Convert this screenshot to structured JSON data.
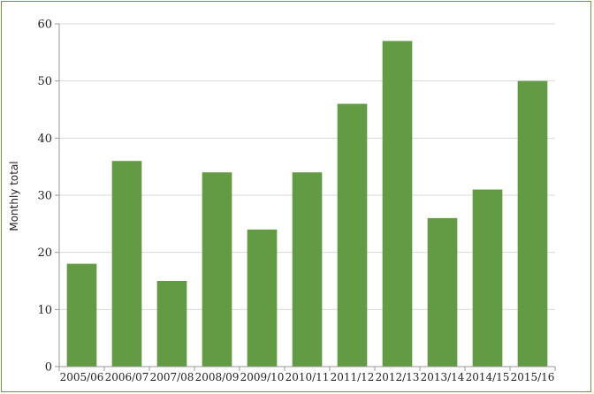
{
  "chart_data": {
    "type": "bar",
    "title": "",
    "xlabel": "",
    "ylabel": "Monthly total",
    "categories": [
      "2005/06",
      "2006/07",
      "2007/08",
      "2008/09",
      "2009/10",
      "2010/11",
      "2011/12",
      "2012/13",
      "2013/14",
      "2014/15",
      "2015/16"
    ],
    "values": [
      18,
      36,
      15,
      34,
      24,
      34,
      46,
      57,
      26,
      31,
      50
    ],
    "ylim": [
      0,
      60
    ],
    "yticks": [
      0,
      10,
      20,
      30,
      40,
      50,
      60
    ],
    "grid": true,
    "legend": "none",
    "colors": {
      "bar": "#629b44",
      "grid": "#d9d9d9",
      "axis": "#9a9a9a",
      "frame": "#6e9a3c"
    }
  }
}
